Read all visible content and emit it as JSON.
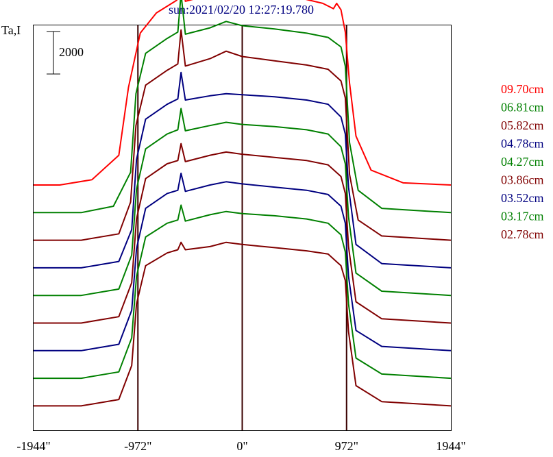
{
  "chart_data": {
    "type": "line",
    "title": "sun:2021/02/20 12:27:19.780",
    "ylabel": "Ta,I",
    "scale_bar_label": "2000",
    "x_tick_labels": [
      "-1944\"",
      "-972\"",
      "0\"",
      "972\"",
      "1944\""
    ],
    "x_ticks": [
      -1944,
      -972,
      0,
      972,
      1944
    ],
    "xlim": [
      -1944,
      1944
    ],
    "vertical_lines": [
      -972,
      0,
      972
    ],
    "legend_position": "right",
    "series": [
      {
        "name": "09.70cm",
        "color": "#ff0000",
        "points": [
          [
            -1944,
            0
          ],
          [
            -1700,
            0
          ],
          [
            -1400,
            250
          ],
          [
            -1150,
            1400
          ],
          [
            -1060,
            4600
          ],
          [
            -950,
            7150
          ],
          [
            -800,
            8100
          ],
          [
            -610,
            8700
          ],
          [
            -570,
            10750
          ],
          [
            -530,
            8650
          ],
          [
            -300,
            8950
          ],
          [
            -150,
            9500
          ],
          [
            0,
            9250
          ],
          [
            200,
            8950
          ],
          [
            500,
            8850
          ],
          [
            750,
            8550
          ],
          [
            850,
            8300
          ],
          [
            880,
            8550
          ],
          [
            920,
            8250
          ],
          [
            960,
            7200
          ],
          [
            1000,
            4800
          ],
          [
            1060,
            2300
          ],
          [
            1200,
            700
          ],
          [
            1500,
            100
          ],
          [
            1944,
            0
          ]
        ]
      },
      {
        "name": "06.81cm",
        "color": "#008000",
        "points": [
          [
            -1944,
            0
          ],
          [
            -1500,
            0
          ],
          [
            -1200,
            300
          ],
          [
            -1040,
            1900
          ],
          [
            -990,
            5600
          ],
          [
            -900,
            7500
          ],
          [
            -700,
            8200
          ],
          [
            -600,
            8500
          ],
          [
            -570,
            10300
          ],
          [
            -530,
            8400
          ],
          [
            -300,
            8700
          ],
          [
            -150,
            9000
          ],
          [
            0,
            8800
          ],
          [
            300,
            8650
          ],
          [
            600,
            8450
          ],
          [
            800,
            8250
          ],
          [
            920,
            7800
          ],
          [
            960,
            6900
          ],
          [
            1000,
            3300
          ],
          [
            1080,
            1050
          ],
          [
            1300,
            200
          ],
          [
            1944,
            0
          ]
        ]
      },
      {
        "name": "05.82cm",
        "color": "#800000",
        "points": [
          [
            -1944,
            0
          ],
          [
            -1500,
            0
          ],
          [
            -1150,
            300
          ],
          [
            -1040,
            1800
          ],
          [
            -990,
            5400
          ],
          [
            -900,
            7300
          ],
          [
            -700,
            8000
          ],
          [
            -600,
            8300
          ],
          [
            -570,
            9900
          ],
          [
            -530,
            8200
          ],
          [
            -300,
            8550
          ],
          [
            -150,
            8900
          ],
          [
            0,
            8650
          ],
          [
            300,
            8450
          ],
          [
            600,
            8250
          ],
          [
            800,
            8050
          ],
          [
            920,
            7500
          ],
          [
            960,
            6700
          ],
          [
            1000,
            3100
          ],
          [
            1080,
            950
          ],
          [
            1300,
            200
          ],
          [
            1944,
            0
          ]
        ]
      },
      {
        "name": "04.78cm",
        "color": "#000080",
        "points": [
          [
            -1944,
            0
          ],
          [
            -1500,
            0
          ],
          [
            -1150,
            300
          ],
          [
            -1030,
            1800
          ],
          [
            -985,
            5100
          ],
          [
            -900,
            7000
          ],
          [
            -700,
            7700
          ],
          [
            -600,
            7950
          ],
          [
            -570,
            9200
          ],
          [
            -530,
            7900
          ],
          [
            -300,
            8100
          ],
          [
            -150,
            8200
          ],
          [
            0,
            8150
          ],
          [
            300,
            8050
          ],
          [
            600,
            7900
          ],
          [
            800,
            7700
          ],
          [
            920,
            7100
          ],
          [
            960,
            6300
          ],
          [
            990,
            3800
          ],
          [
            1060,
            1100
          ],
          [
            1300,
            200
          ],
          [
            1944,
            0
          ]
        ]
      },
      {
        "name": "04.27cm",
        "color": "#008000",
        "points": [
          [
            -1944,
            0
          ],
          [
            -1500,
            0
          ],
          [
            -1150,
            300
          ],
          [
            -1030,
            1900
          ],
          [
            -985,
            5000
          ],
          [
            -900,
            6900
          ],
          [
            -700,
            7600
          ],
          [
            -600,
            7800
          ],
          [
            -570,
            8800
          ],
          [
            -530,
            7750
          ],
          [
            -300,
            8000
          ],
          [
            -150,
            8150
          ],
          [
            0,
            8050
          ],
          [
            300,
            7950
          ],
          [
            600,
            7800
          ],
          [
            800,
            7600
          ],
          [
            920,
            7000
          ],
          [
            960,
            6200
          ],
          [
            990,
            3700
          ],
          [
            1060,
            1050
          ],
          [
            1300,
            200
          ],
          [
            1944,
            0
          ]
        ]
      },
      {
        "name": "03.86cm",
        "color": "#800000",
        "points": [
          [
            -1944,
            0
          ],
          [
            -1500,
            0
          ],
          [
            -1150,
            300
          ],
          [
            -1030,
            1900
          ],
          [
            -985,
            4900
          ],
          [
            -900,
            6800
          ],
          [
            -700,
            7500
          ],
          [
            -600,
            7650
          ],
          [
            -570,
            8450
          ],
          [
            -530,
            7600
          ],
          [
            -300,
            7900
          ],
          [
            -150,
            8050
          ],
          [
            0,
            7950
          ],
          [
            300,
            7800
          ],
          [
            600,
            7650
          ],
          [
            800,
            7450
          ],
          [
            920,
            6900
          ],
          [
            960,
            6100
          ],
          [
            990,
            3600
          ],
          [
            1060,
            1000
          ],
          [
            1300,
            200
          ],
          [
            1944,
            0
          ]
        ]
      },
      {
        "name": "03.52cm",
        "color": "#000080",
        "points": [
          [
            -1944,
            0
          ],
          [
            -1500,
            0
          ],
          [
            -1150,
            300
          ],
          [
            -1030,
            1900
          ],
          [
            -985,
            4800
          ],
          [
            -900,
            6700
          ],
          [
            -700,
            7400
          ],
          [
            -600,
            7550
          ],
          [
            -570,
            8350
          ],
          [
            -530,
            7500
          ],
          [
            -300,
            7800
          ],
          [
            -150,
            7950
          ],
          [
            0,
            7850
          ],
          [
            300,
            7700
          ],
          [
            600,
            7550
          ],
          [
            800,
            7350
          ],
          [
            920,
            6800
          ],
          [
            960,
            6000
          ],
          [
            990,
            3500
          ],
          [
            1060,
            950
          ],
          [
            1300,
            200
          ],
          [
            1944,
            0
          ]
        ]
      },
      {
        "name": "03.17cm",
        "color": "#008000",
        "points": [
          [
            -1944,
            0
          ],
          [
            -1500,
            0
          ],
          [
            -1150,
            300
          ],
          [
            -1030,
            1900
          ],
          [
            -985,
            4800
          ],
          [
            -900,
            6650
          ],
          [
            -700,
            7300
          ],
          [
            -600,
            7450
          ],
          [
            -570,
            8150
          ],
          [
            -530,
            7400
          ],
          [
            -300,
            7700
          ],
          [
            -150,
            7850
          ],
          [
            0,
            7750
          ],
          [
            300,
            7650
          ],
          [
            600,
            7500
          ],
          [
            800,
            7300
          ],
          [
            920,
            6750
          ],
          [
            960,
            5950
          ],
          [
            990,
            3500
          ],
          [
            1060,
            950
          ],
          [
            1300,
            200
          ],
          [
            1944,
            0
          ]
        ]
      },
      {
        "name": "02.78cm",
        "color": "#800000",
        "points": [
          [
            -1944,
            0
          ],
          [
            -1500,
            0
          ],
          [
            -1150,
            300
          ],
          [
            -1030,
            1900
          ],
          [
            -985,
            4800
          ],
          [
            -900,
            6600
          ],
          [
            -700,
            7200
          ],
          [
            -600,
            7350
          ],
          [
            -570,
            7700
          ],
          [
            -530,
            7350
          ],
          [
            -300,
            7500
          ],
          [
            -150,
            7700
          ],
          [
            0,
            7600
          ],
          [
            300,
            7450
          ],
          [
            600,
            7300
          ],
          [
            800,
            7150
          ],
          [
            920,
            6600
          ],
          [
            960,
            5900
          ],
          [
            990,
            3500
          ],
          [
            1060,
            950
          ],
          [
            1300,
            200
          ],
          [
            1944,
            0
          ]
        ]
      }
    ]
  }
}
